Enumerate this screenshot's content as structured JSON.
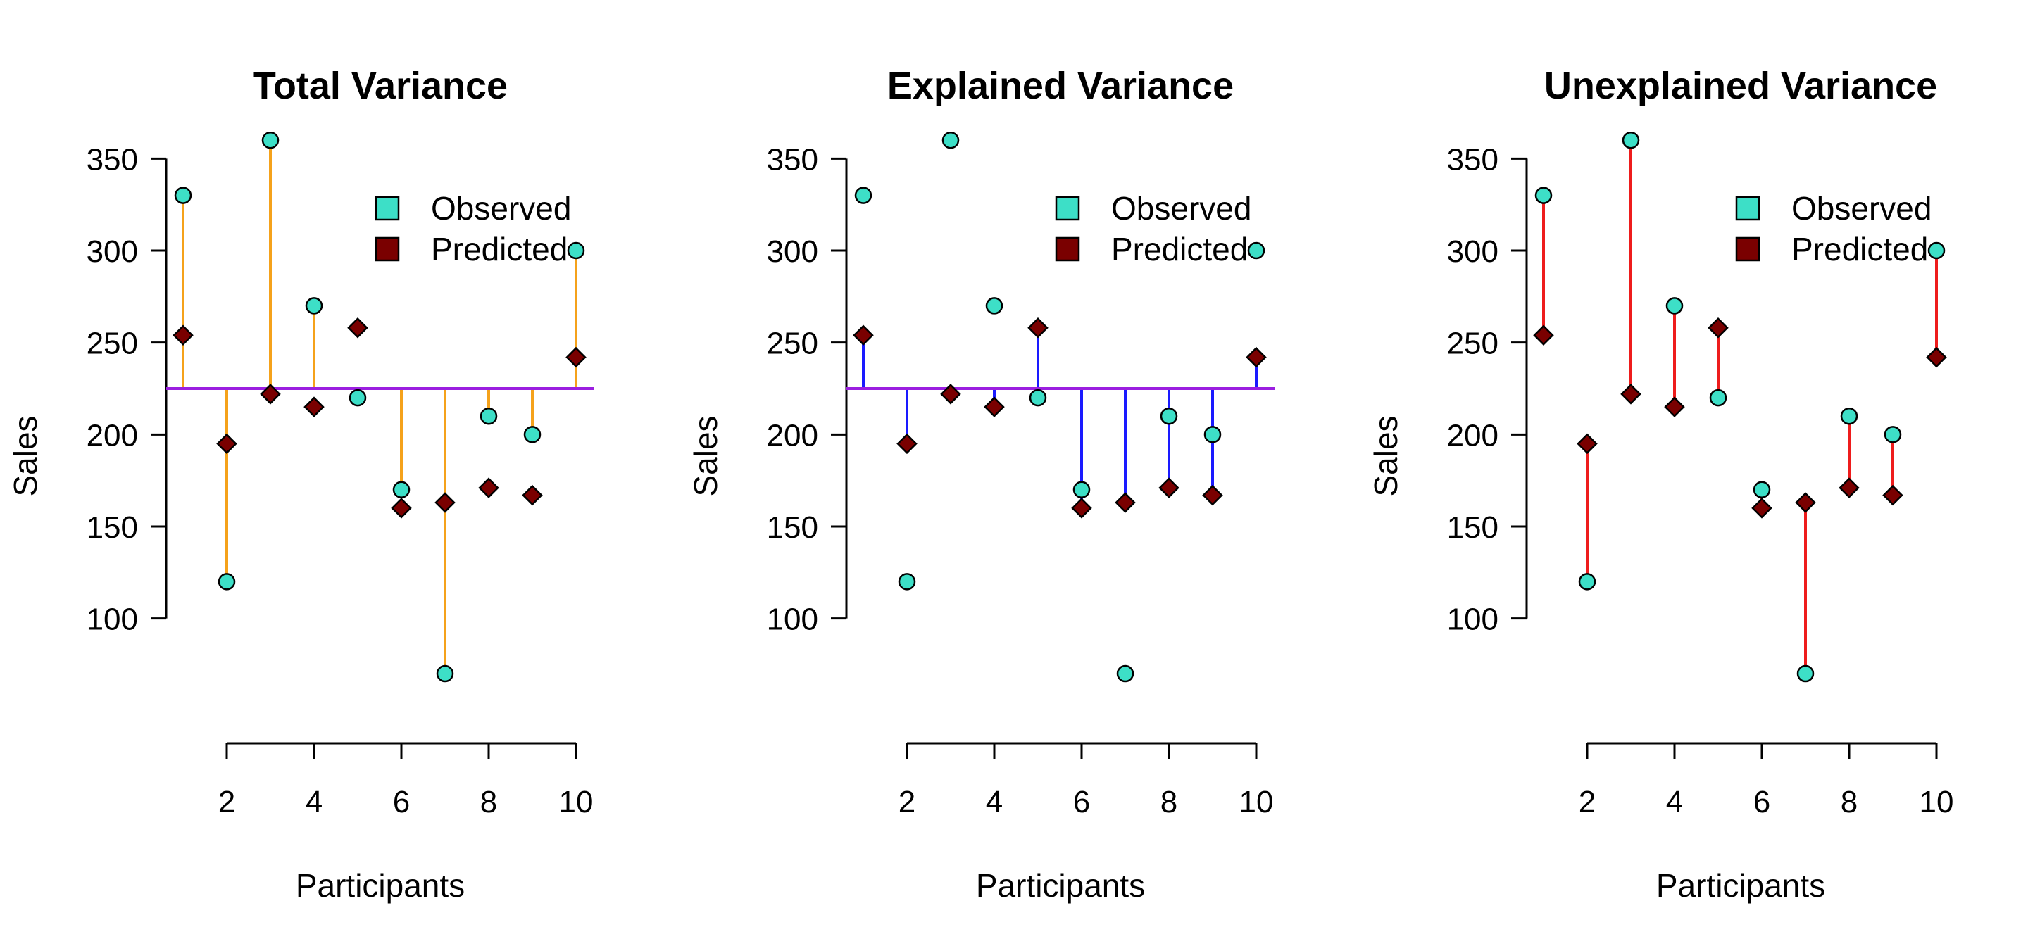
{
  "colors": {
    "observed": "#3ddfc7",
    "predicted": "#7a0000",
    "mean_line": "#9b1fe0",
    "total_segments": "#f5a21b",
    "explained_segments": "#1a1aff",
    "unexplained_segments": "#ee1c1c",
    "marker_edge": "#000000",
    "axis": "#000000"
  },
  "chart_data": [
    {
      "type": "scatter",
      "title": "Total Variance",
      "xlabel": "Participants",
      "ylabel": "Sales",
      "x": [
        1,
        2,
        3,
        4,
        5,
        6,
        7,
        8,
        9,
        10
      ],
      "x_ticks": [
        2,
        4,
        6,
        8,
        10
      ],
      "y_ticks": [
        100,
        150,
        200,
        250,
        300,
        350
      ],
      "xlim": [
        1,
        10
      ],
      "ylim": [
        70,
        360
      ],
      "series": [
        {
          "name": "Observed",
          "marker": "circle",
          "values": [
            330,
            120,
            360,
            270,
            220,
            170,
            70,
            210,
            200,
            300
          ]
        },
        {
          "name": "Predicted",
          "marker": "diamond",
          "values": [
            254,
            195,
            222,
            215,
            258,
            160,
            163,
            171,
            167,
            242
          ]
        }
      ],
      "mean_line": 225,
      "segments": "observed-to-mean",
      "segment_color_key": "total_segments",
      "legend": {
        "position": "top-right",
        "entries": [
          "Observed",
          "Predicted"
        ]
      },
      "grid": false
    },
    {
      "type": "scatter",
      "title": "Explained Variance",
      "xlabel": "Participants",
      "ylabel": "Sales",
      "x": [
        1,
        2,
        3,
        4,
        5,
        6,
        7,
        8,
        9,
        10
      ],
      "x_ticks": [
        2,
        4,
        6,
        8,
        10
      ],
      "y_ticks": [
        100,
        150,
        200,
        250,
        300,
        350
      ],
      "xlim": [
        1,
        10
      ],
      "ylim": [
        70,
        360
      ],
      "series": [
        {
          "name": "Observed",
          "marker": "circle",
          "values": [
            330,
            120,
            360,
            270,
            220,
            170,
            70,
            210,
            200,
            300
          ]
        },
        {
          "name": "Predicted",
          "marker": "diamond",
          "values": [
            254,
            195,
            222,
            215,
            258,
            160,
            163,
            171,
            167,
            242
          ]
        }
      ],
      "mean_line": 225,
      "segments": "predicted-to-mean",
      "segment_color_key": "explained_segments",
      "legend": {
        "position": "top-right",
        "entries": [
          "Observed",
          "Predicted"
        ]
      },
      "grid": false
    },
    {
      "type": "scatter",
      "title": "Unexplained Variance",
      "xlabel": "Participants",
      "ylabel": "Sales",
      "x": [
        1,
        2,
        3,
        4,
        5,
        6,
        7,
        8,
        9,
        10
      ],
      "x_ticks": [
        2,
        4,
        6,
        8,
        10
      ],
      "y_ticks": [
        100,
        150,
        200,
        250,
        300,
        350
      ],
      "xlim": [
        1,
        10
      ],
      "ylim": [
        70,
        360
      ],
      "series": [
        {
          "name": "Observed",
          "marker": "circle",
          "values": [
            330,
            120,
            360,
            270,
            220,
            170,
            70,
            210,
            200,
            300
          ]
        },
        {
          "name": "Predicted",
          "marker": "diamond",
          "values": [
            254,
            195,
            222,
            215,
            258,
            160,
            163,
            171,
            167,
            242
          ]
        }
      ],
      "mean_line": null,
      "segments": "observed-to-predicted",
      "segment_color_key": "unexplained_segments",
      "legend": {
        "position": "top-right",
        "entries": [
          "Observed",
          "Predicted"
        ]
      },
      "grid": false
    }
  ]
}
